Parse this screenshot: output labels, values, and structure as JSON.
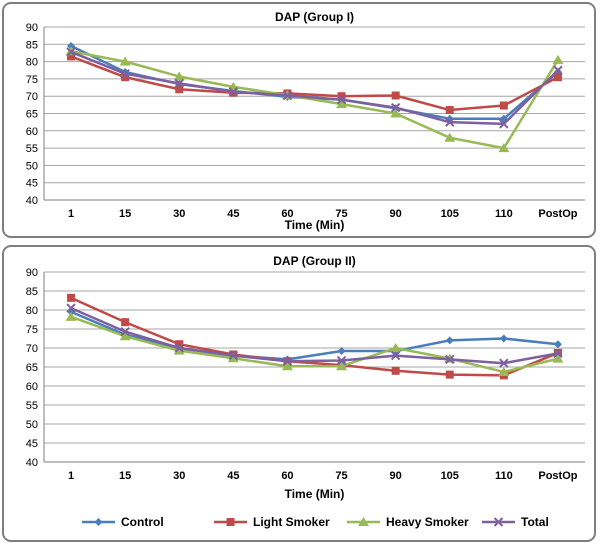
{
  "chart_data": [
    {
      "type": "line",
      "title": "DAP (Group I)",
      "xlabel": "Time (Min)",
      "ylabel": "",
      "ylim": [
        40,
        90
      ],
      "yticks": [
        "40",
        "45",
        "50",
        "55",
        "60",
        "65",
        "70",
        "75",
        "80",
        "85",
        "90"
      ],
      "categories": [
        "1",
        "15",
        "30",
        "45",
        "60",
        "75",
        "90",
        "105",
        "110",
        "PostOp"
      ],
      "grid": true,
      "legend": "none",
      "series": [
        {
          "name": "Control",
          "color": "#4a7ebb",
          "marker": "diamond",
          "values": [
            84.5,
            77,
            73.5,
            71.5,
            69.8,
            69,
            66.5,
            63.5,
            63.5,
            77
          ]
        },
        {
          "name": "Light Smoker",
          "color": "#be4b48",
          "marker": "square",
          "values": [
            81.5,
            75.5,
            72,
            71,
            70.8,
            70,
            70.2,
            66,
            67.3,
            75.5
          ]
        },
        {
          "name": "Heavy Smoker",
          "color": "#98b954",
          "marker": "triangle",
          "values": [
            83,
            80,
            75.7,
            72.7,
            70.3,
            67.7,
            65,
            58,
            55,
            80.5
          ]
        },
        {
          "name": "Total",
          "color": "#7d60a0",
          "marker": "x",
          "values": [
            82.8,
            76.5,
            73.7,
            71.3,
            70.2,
            69,
            66.7,
            62.5,
            62,
            77.5
          ]
        }
      ]
    },
    {
      "type": "line",
      "title": "DAP (Group II)",
      "xlabel": "Time (Min)",
      "ylabel": "",
      "ylim": [
        40,
        90
      ],
      "yticks": [
        "40",
        "45",
        "50",
        "55",
        "60",
        "65",
        "70",
        "75",
        "80",
        "85",
        "90"
      ],
      "categories": [
        "1",
        "15",
        "30",
        "45",
        "60",
        "75",
        "90",
        "105",
        "110",
        "PostOp"
      ],
      "grid": true,
      "legend": "bottom",
      "series": [
        {
          "name": "Control",
          "color": "#4a7ebb",
          "marker": "diamond",
          "values": [
            79.5,
            73.5,
            70,
            68,
            67,
            69.2,
            69.2,
            72,
            72.5,
            71
          ]
        },
        {
          "name": "Light Smoker",
          "color": "#be4b48",
          "marker": "square",
          "values": [
            83.2,
            76.8,
            71,
            68.3,
            66.5,
            65.5,
            64,
            63,
            62.8,
            68.7
          ]
        },
        {
          "name": "Heavy Smoker",
          "color": "#98b954",
          "marker": "triangle",
          "values": [
            78.2,
            73.1,
            69.3,
            67.3,
            65.2,
            65.2,
            70,
            67.2,
            63.7,
            67.2
          ]
        },
        {
          "name": "Total",
          "color": "#7d60a0",
          "marker": "x",
          "values": [
            80.5,
            74.3,
            70,
            68,
            66.5,
            66.7,
            68,
            67,
            66,
            68.6
          ]
        }
      ]
    }
  ]
}
